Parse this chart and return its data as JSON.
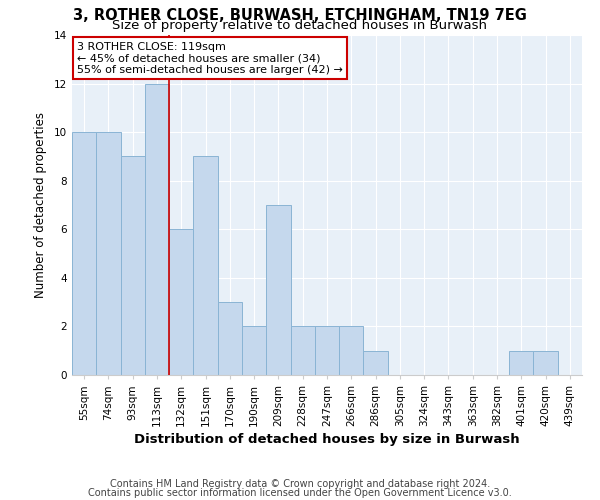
{
  "title1": "3, ROTHER CLOSE, BURWASH, ETCHINGHAM, TN19 7EG",
  "title2": "Size of property relative to detached houses in Burwash",
  "xlabel": "Distribution of detached houses by size in Burwash",
  "ylabel": "Number of detached properties",
  "footnote1": "Contains HM Land Registry data © Crown copyright and database right 2024.",
  "footnote2": "Contains public sector information licensed under the Open Government Licence v3.0.",
  "categories": [
    "55sqm",
    "74sqm",
    "93sqm",
    "113sqm",
    "132sqm",
    "151sqm",
    "170sqm",
    "190sqm",
    "209sqm",
    "228sqm",
    "247sqm",
    "266sqm",
    "286sqm",
    "305sqm",
    "324sqm",
    "343sqm",
    "363sqm",
    "382sqm",
    "401sqm",
    "420sqm",
    "439sqm"
  ],
  "values": [
    10,
    10,
    9,
    12,
    6,
    9,
    3,
    2,
    7,
    2,
    2,
    2,
    1,
    0,
    0,
    0,
    0,
    0,
    1,
    1,
    0
  ],
  "bar_color": "#c5d8ed",
  "bar_edge_color": "#8ab4d4",
  "property_line_color": "#cc0000",
  "property_line_x": 3.5,
  "annotation_line1": "3 ROTHER CLOSE: 119sqm",
  "annotation_line2": "← 45% of detached houses are smaller (34)",
  "annotation_line3": "55% of semi-detached houses are larger (42) →",
  "annotation_box_color": "#ffffff",
  "annotation_box_edge_color": "#cc0000",
  "ylim": [
    0,
    14
  ],
  "yticks": [
    0,
    2,
    4,
    6,
    8,
    10,
    12,
    14
  ],
  "bg_color": "#e8f0f8",
  "title1_fontsize": 10.5,
  "title2_fontsize": 9.5,
  "xlabel_fontsize": 9.5,
  "ylabel_fontsize": 8.5,
  "tick_fontsize": 7.5,
  "annotation_fontsize": 8.0,
  "footnote_fontsize": 7.0
}
